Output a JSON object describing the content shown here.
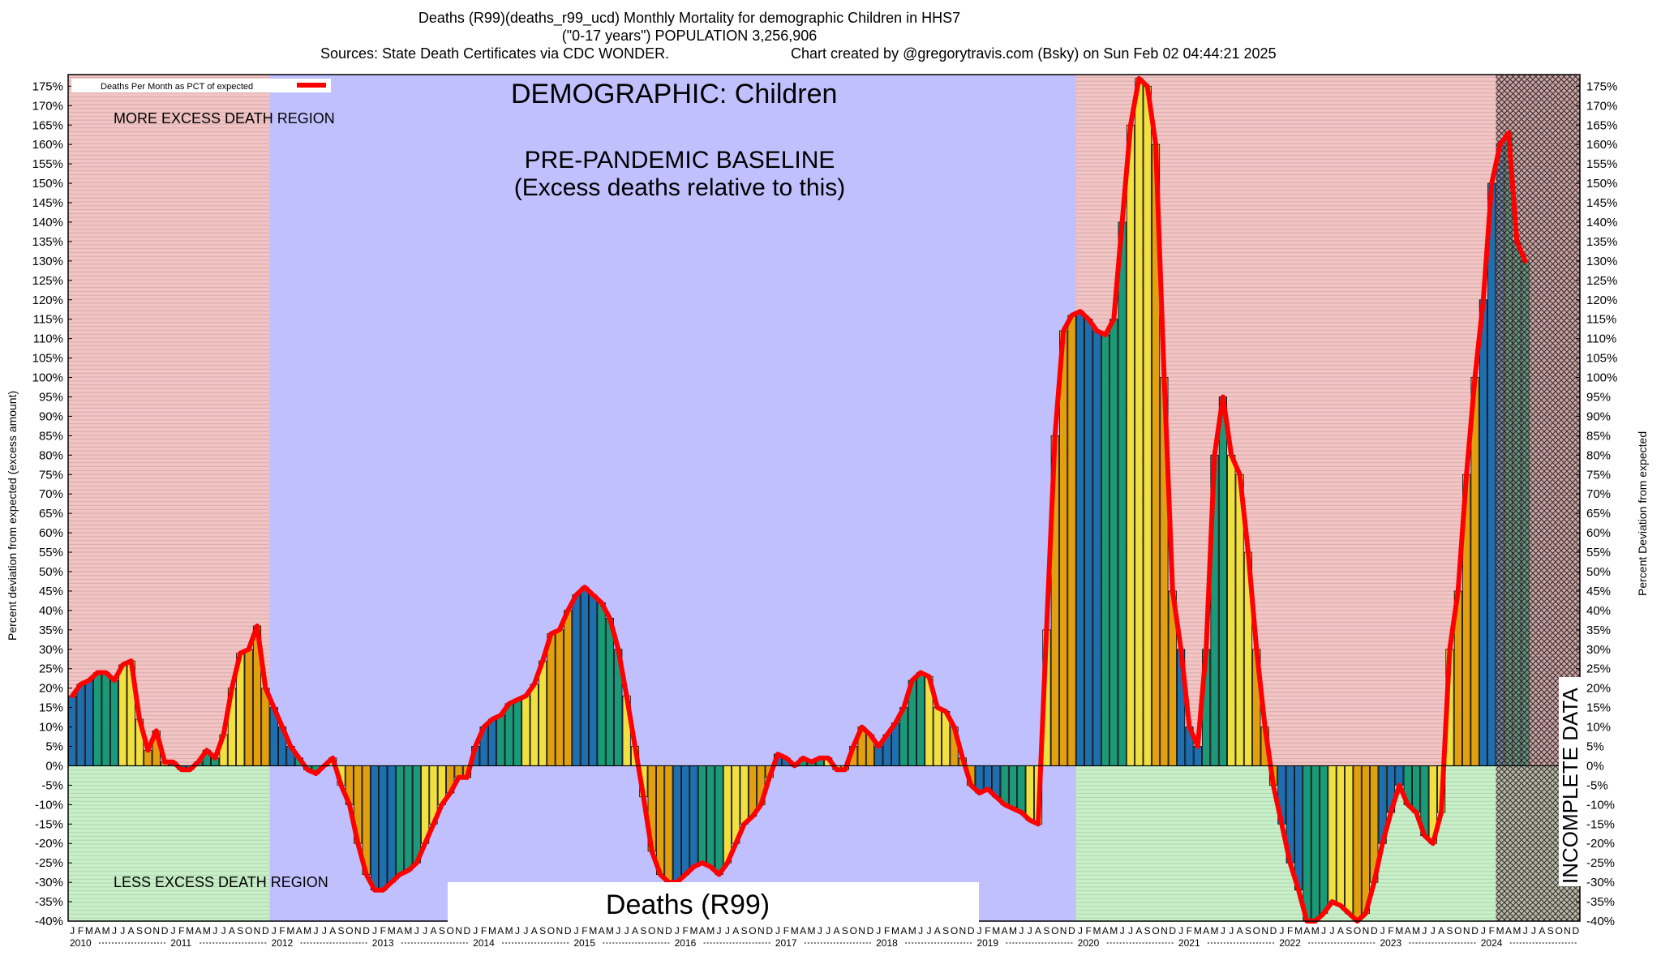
{
  "header": {
    "line1": "Deaths (R99)(deaths_r99_ucd) Monthly Mortality for demographic Children in HHS7",
    "line2": "(\"0-17 years\") POPULATION 3,256,906",
    "sources": "Sources: State Death Certificates via CDC WONDER.",
    "credit": "Chart created by @gregorytravis.com (Bsky) on Sun Feb 02 04:44:21 2025"
  },
  "annotations": {
    "demographic": "DEMOGRAPHIC: Children",
    "baseline_line1": "PRE-PANDEMIC BASELINE",
    "baseline_line2": "(Excess deaths relative to this)",
    "more_region": "MORE EXCESS DEATH REGION",
    "less_region": "LESS EXCESS DEATH REGION",
    "cause_box": "Deaths (R99)",
    "incomplete": "INCOMPLETE DATA"
  },
  "colors": {
    "more_region": "#f3c4c4",
    "less_region": "#c8f0c8",
    "baseline_region": "#c0c0ff",
    "line": "#ff0000",
    "bar_palette": [
      "#1f6fae",
      "#1a9a78",
      "#f0e040",
      "#e0a010"
    ]
  },
  "chart_data": {
    "type": "bar",
    "title": "Deaths (R99)(deaths_r99_ucd) Monthly Mortality for demographic Children in HHS7",
    "ylabel_left": "Percent deviation from expected (excess amount)",
    "ylabel_right": "Percent Deviation from expected",
    "legend": "Deaths Per Month as PCT of expected",
    "legend_position": "top-left",
    "ylim": [
      -40,
      178
    ],
    "ytick_step": 5,
    "start_year": 2010,
    "end_year": 2024,
    "month_letters": [
      "J",
      "F",
      "M",
      "A",
      "M",
      "J",
      "J",
      "A",
      "S",
      "O",
      "N",
      "D"
    ],
    "baseline_years": [
      2012,
      2019
    ],
    "incomplete_from": "2024-03",
    "values": [
      18,
      21,
      22,
      24,
      24,
      22,
      26,
      27,
      12,
      4,
      9,
      1,
      1,
      -1,
      -1,
      1,
      4,
      2,
      8,
      20,
      29,
      30,
      36,
      20,
      15,
      10,
      5,
      2,
      -1,
      -2,
      0,
      2,
      -5,
      -10,
      -20,
      -28,
      -32,
      -32,
      -30,
      -28,
      -27,
      -25,
      -20,
      -15,
      -10,
      -7,
      -3,
      -3,
      5,
      10,
      12,
      13,
      16,
      17,
      18,
      21,
      27,
      34,
      35,
      40,
      44,
      46,
      44,
      42,
      38,
      30,
      18,
      5,
      -8,
      -22,
      -28,
      -30,
      -30,
      -28,
      -26,
      -25,
      -26,
      -28,
      -25,
      -20,
      -15,
      -13,
      -10,
      -3,
      3,
      2,
      0,
      2,
      1,
      2,
      2,
      -1,
      -1,
      5,
      10,
      8,
      5,
      8,
      11,
      15,
      22,
      24,
      23,
      15,
      14,
      10,
      2,
      -5,
      -7,
      -6,
      -8,
      -10,
      -11,
      -12,
      -14,
      -15,
      35,
      85,
      112,
      116,
      117,
      115,
      112,
      111,
      115,
      140,
      165,
      177,
      175,
      160,
      100,
      45,
      30,
      10,
      5,
      30,
      80,
      95,
      80,
      75,
      55,
      30,
      10,
      -5,
      -15,
      -25,
      -32,
      -40,
      -40,
      -38,
      -35,
      -36,
      -38,
      -40,
      -38,
      -30,
      -20,
      -12,
      -5,
      -10,
      -12,
      -18,
      -20,
      -12,
      30,
      45,
      75,
      100,
      120,
      150,
      160,
      163,
      135,
      130
    ]
  }
}
